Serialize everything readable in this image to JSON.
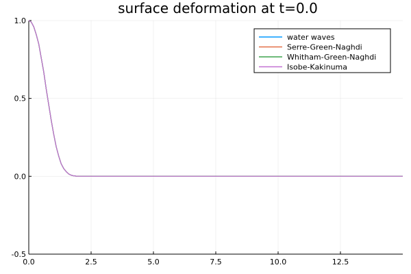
{
  "chart_data": {
    "type": "line",
    "title": "surface deformation at t=0.0",
    "xlabel": "",
    "ylabel": "",
    "xlim": [
      0,
      15
    ],
    "ylim": [
      -0.5,
      1.0
    ],
    "x_ticks": [
      0.0,
      2.5,
      5.0,
      7.5,
      10.0,
      12.5
    ],
    "x_tick_labels": [
      "0.0",
      "2.5",
      "5.0",
      "7.5",
      "10.0",
      "12.5"
    ],
    "y_ticks": [
      -0.5,
      0.0,
      0.5,
      1.0
    ],
    "y_tick_labels": [
      "-0.5",
      "0.0",
      "0.5",
      "1.0"
    ],
    "grid": true,
    "legend_position": "top-right",
    "x": [
      0.0,
      0.1,
      0.2,
      0.3,
      0.4,
      0.5,
      0.6,
      0.7,
      0.8,
      0.9,
      1.0,
      1.1,
      1.2,
      1.3,
      1.4,
      1.5,
      1.6,
      1.7,
      1.8,
      1.9,
      2.0,
      2.5,
      3.0,
      4.0,
      5.0,
      6.0,
      7.0,
      8.0,
      9.0,
      10.0,
      11.0,
      12.0,
      13.0,
      14.0,
      15.0
    ],
    "series": [
      {
        "name": "water waves",
        "color": "#0099ff",
        "values": [
          1.0,
          0.99,
          0.96,
          0.91,
          0.85,
          0.76,
          0.67,
          0.56,
          0.46,
          0.36,
          0.27,
          0.19,
          0.13,
          0.08,
          0.05,
          0.03,
          0.015,
          0.007,
          0.003,
          0.001,
          0.0,
          0.0,
          0.0,
          0.0,
          0.0,
          0.0,
          0.0,
          0.0,
          0.0,
          0.0,
          0.0,
          0.0,
          0.0,
          0.0,
          0.0
        ]
      },
      {
        "name": "Serre-Green-Naghdi",
        "color": "#e26f46",
        "values": [
          1.0,
          0.99,
          0.96,
          0.91,
          0.85,
          0.76,
          0.67,
          0.56,
          0.46,
          0.36,
          0.27,
          0.19,
          0.13,
          0.08,
          0.05,
          0.03,
          0.015,
          0.007,
          0.003,
          0.001,
          0.0,
          0.0,
          0.0,
          0.0,
          0.0,
          0.0,
          0.0,
          0.0,
          0.0,
          0.0,
          0.0,
          0.0,
          0.0,
          0.0,
          0.0
        ]
      },
      {
        "name": "Whitham-Green-Naghdi",
        "color": "#3da44d",
        "values": [
          1.0,
          0.99,
          0.96,
          0.91,
          0.85,
          0.76,
          0.67,
          0.56,
          0.46,
          0.36,
          0.27,
          0.19,
          0.13,
          0.08,
          0.05,
          0.03,
          0.015,
          0.007,
          0.003,
          0.001,
          0.0,
          0.0,
          0.0,
          0.0,
          0.0,
          0.0,
          0.0,
          0.0,
          0.0,
          0.0,
          0.0,
          0.0,
          0.0,
          0.0,
          0.0
        ]
      },
      {
        "name": "Isobe-Kakinuma",
        "color": "#c271d2",
        "values": [
          1.0,
          0.99,
          0.96,
          0.91,
          0.85,
          0.76,
          0.67,
          0.56,
          0.46,
          0.36,
          0.27,
          0.19,
          0.13,
          0.08,
          0.05,
          0.03,
          0.015,
          0.007,
          0.003,
          0.001,
          0.0,
          0.0,
          0.0,
          0.0,
          0.0,
          0.0,
          0.0,
          0.0,
          0.0,
          0.0,
          0.0,
          0.0,
          0.0,
          0.0,
          0.0
        ]
      }
    ]
  }
}
